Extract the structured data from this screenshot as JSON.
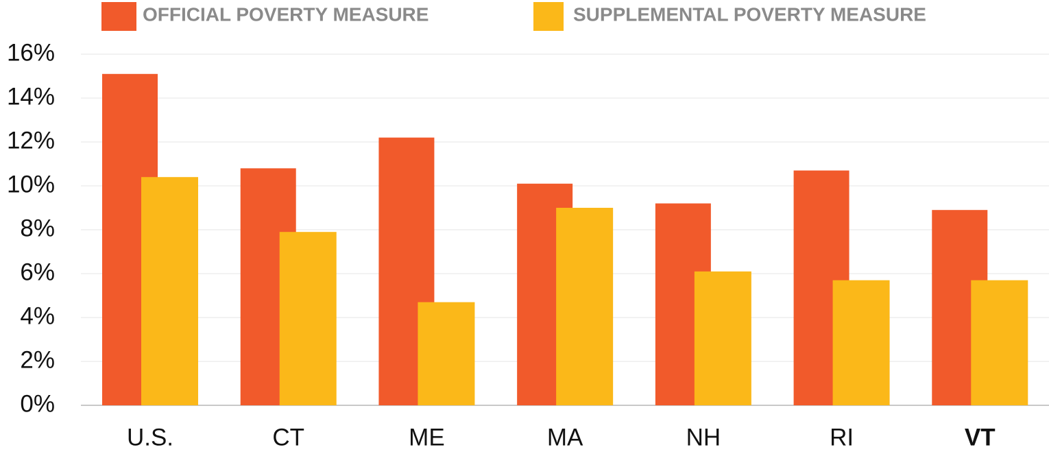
{
  "chart_data": {
    "type": "bar",
    "categories": [
      "U.S.",
      "CT",
      "ME",
      "MA",
      "NH",
      "RI",
      "VT"
    ],
    "series": [
      {
        "name": "OFFICIAL POVERTY MEASURE",
        "color": "#f15a2b",
        "values": [
          15.1,
          10.8,
          12.2,
          10.1,
          9.2,
          10.7,
          8.9
        ]
      },
      {
        "name": "SUPPLEMENTAL POVERTY MEASURE",
        "color": "#fbb819",
        "values": [
          10.4,
          7.9,
          4.7,
          9.0,
          6.1,
          5.7,
          5.7
        ]
      }
    ],
    "ylim": [
      0,
      16
    ],
    "yticks": [
      {
        "value": 0,
        "label": "0%"
      },
      {
        "value": 2,
        "label": "2%"
      },
      {
        "value": 4,
        "label": "4%"
      },
      {
        "value": 6,
        "label": "6%"
      },
      {
        "value": 8,
        "label": "8%"
      },
      {
        "value": 10,
        "label": "10%"
      },
      {
        "value": 12,
        "label": "12%"
      },
      {
        "value": 14,
        "label": "14%"
      },
      {
        "value": 16,
        "label": "16%"
      }
    ],
    "grid": true
  }
}
